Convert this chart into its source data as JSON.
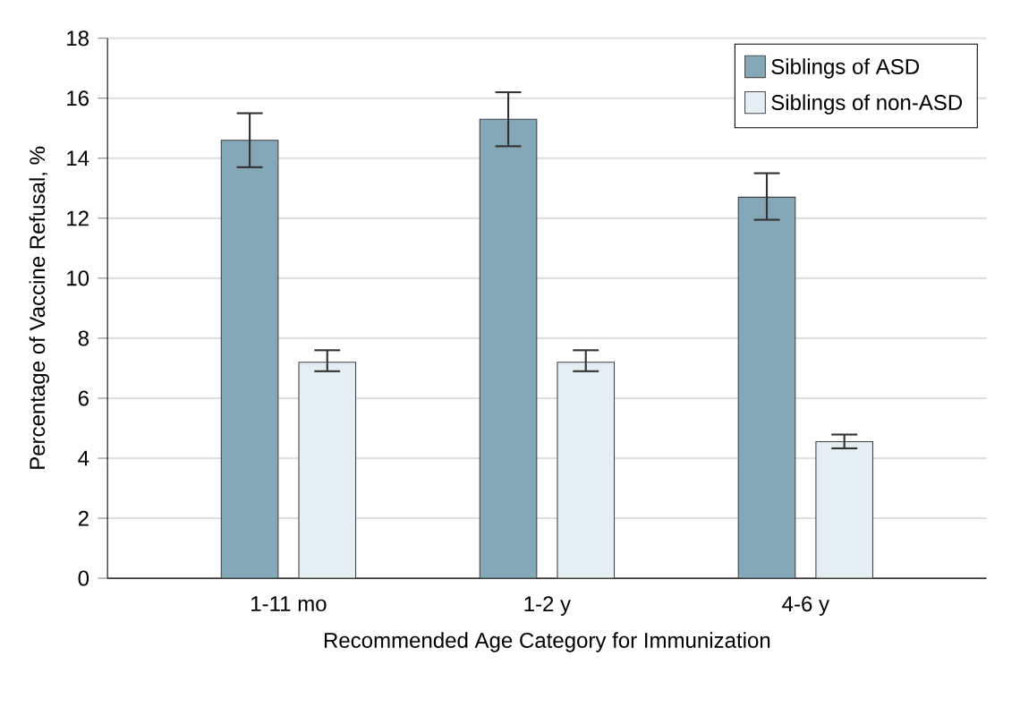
{
  "chart_data": {
    "type": "bar",
    "xlabel": "Recommended Age Category for Immunization",
    "ylabel": "Percentage of Vaccine Refusal, %",
    "categories": [
      "1-11 mo",
      "1-2 y",
      "4-6 y"
    ],
    "series": [
      {
        "name": "Siblings of ASD",
        "color": "#84a8b8",
        "values": [
          14.6,
          15.3,
          12.7
        ],
        "errors": [
          [
            13.7,
            15.5
          ],
          [
            14.4,
            16.2
          ],
          [
            11.95,
            13.5
          ]
        ]
      },
      {
        "name": "Siblings of non-ASD",
        "color": "#e5eef2",
        "values": [
          7.2,
          7.2,
          4.55
        ],
        "errors": [
          [
            6.9,
            7.6
          ],
          [
            6.9,
            7.6
          ],
          [
            4.33,
            4.79
          ]
        ]
      }
    ],
    "ylim": [
      0,
      18
    ],
    "yticks": [
      0,
      2,
      4,
      6,
      8,
      10,
      12,
      14,
      16,
      18
    ],
    "grid": "y",
    "legend": "top right"
  }
}
